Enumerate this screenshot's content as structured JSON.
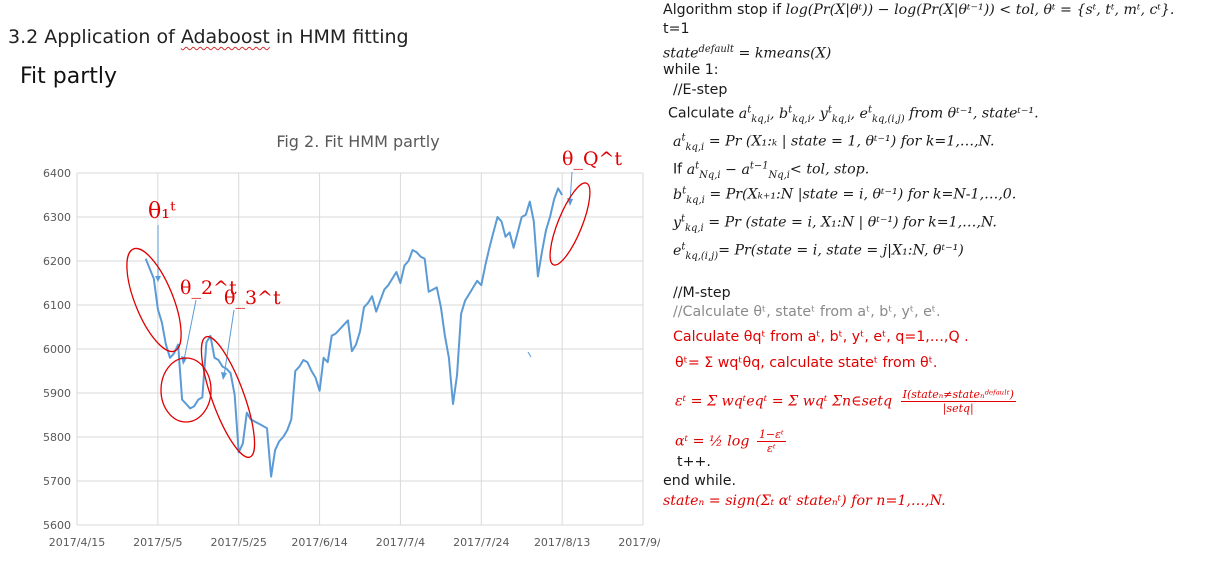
{
  "heading": {
    "prefix": "3.2 Application of ",
    "squiggle_word": "Adaboost",
    "suffix": " in HMM fitting"
  },
  "subheading": "Fit partly",
  "chart_data": {
    "type": "line",
    "title": "Fig 2. Fit HMM partly",
    "x_ticks": [
      "2017/4/15",
      "2017/5/5",
      "2017/5/25",
      "2017/6/14",
      "2017/7/4",
      "2017/7/24",
      "2017/8/13",
      "2017/9/2"
    ],
    "y_ticks": [
      "5600",
      "5700",
      "5800",
      "5900",
      "6000",
      "6100",
      "6200",
      "6300",
      "6400"
    ],
    "xlim": [
      0,
      140
    ],
    "ylim": [
      5600,
      6400
    ],
    "series_color": "#5b9bd5",
    "points": [
      [
        17,
        6205
      ],
      [
        19,
        6160
      ],
      [
        20,
        6090
      ],
      [
        21,
        6060
      ],
      [
        22,
        6010
      ],
      [
        23,
        5980
      ],
      [
        24,
        5990
      ],
      [
        25,
        6010
      ],
      [
        26,
        5885
      ],
      [
        27,
        5875
      ],
      [
        28,
        5865
      ],
      [
        29,
        5870
      ],
      [
        30,
        5885
      ],
      [
        31,
        5890
      ],
      [
        32,
        6015
      ],
      [
        33,
        6030
      ],
      [
        34,
        5980
      ],
      [
        35,
        5975
      ],
      [
        36,
        5960
      ],
      [
        37,
        5955
      ],
      [
        38,
        5945
      ],
      [
        39,
        5895
      ],
      [
        40,
        5765
      ],
      [
        41,
        5785
      ],
      [
        42,
        5855
      ],
      [
        43,
        5840
      ],
      [
        44,
        5835
      ],
      [
        45,
        5830
      ],
      [
        46,
        5825
      ],
      [
        47,
        5820
      ],
      [
        48,
        5710
      ],
      [
        49,
        5770
      ],
      [
        50,
        5790
      ],
      [
        51,
        5800
      ],
      [
        52,
        5815
      ],
      [
        53,
        5840
      ],
      [
        54,
        5950
      ],
      [
        55,
        5960
      ],
      [
        56,
        5975
      ],
      [
        57,
        5970
      ],
      [
        58,
        5950
      ],
      [
        59,
        5935
      ],
      [
        60,
        5905
      ],
      [
        61,
        5980
      ],
      [
        62,
        5970
      ],
      [
        63,
        6030
      ],
      [
        64,
        6035
      ],
      [
        65,
        6045
      ],
      [
        66,
        6055
      ],
      [
        67,
        6065
      ],
      [
        68,
        5995
      ],
      [
        69,
        6010
      ],
      [
        70,
        6040
      ],
      [
        71,
        6095
      ],
      [
        72,
        6105
      ],
      [
        73,
        6120
      ],
      [
        74,
        6085
      ],
      [
        75,
        6110
      ],
      [
        76,
        6135
      ],
      [
        77,
        6145
      ],
      [
        78,
        6160
      ],
      [
        79,
        6175
      ],
      [
        80,
        6150
      ],
      [
        81,
        6190
      ],
      [
        82,
        6200
      ],
      [
        83,
        6225
      ],
      [
        84,
        6220
      ],
      [
        85,
        6210
      ],
      [
        86,
        6205
      ],
      [
        87,
        6130
      ],
      [
        88,
        6135
      ],
      [
        89,
        6140
      ],
      [
        90,
        6095
      ],
      [
        91,
        6030
      ],
      [
        92,
        5980
      ],
      [
        93,
        5875
      ],
      [
        94,
        5940
      ],
      [
        95,
        6080
      ],
      [
        96,
        6110
      ],
      [
        97,
        6125
      ],
      [
        98,
        6140
      ],
      [
        99,
        6155
      ],
      [
        100,
        6145
      ],
      [
        101,
        6190
      ],
      [
        102,
        6230
      ],
      [
        103,
        6265
      ],
      [
        104,
        6300
      ],
      [
        105,
        6290
      ],
      [
        106,
        6255
      ],
      [
        107,
        6265
      ],
      [
        108,
        6230
      ],
      [
        109,
        6265
      ],
      [
        110,
        6300
      ],
      [
        111,
        6305
      ],
      [
        112,
        6335
      ],
      [
        113,
        6290
      ],
      [
        114,
        6165
      ],
      [
        115,
        6220
      ],
      [
        116,
        6270
      ],
      [
        117,
        6300
      ],
      [
        118,
        6340
      ],
      [
        119,
        6365
      ],
      [
        120,
        6350
      ]
    ],
    "annotations": [
      "θ₁ᵗ",
      "θ_2^t",
      "θ_3^t",
      "θ_Q^t"
    ],
    "annotation_color": "#e00000"
  },
  "algorithm": {
    "stop_text": "Algorithm stop if",
    "stop_formula": "log(Pr(X|θᵗ)) − log(Pr(X|θᵗ⁻¹)) < tol, θᵗ = {sᵗ, tᵗ, mᵗ, cᵗ}.",
    "t_init": "t=1",
    "state_default": "state",
    "kmeans": "= kmeans(X)",
    "while_loop": "while 1:",
    "e_step": "//E-step",
    "calculate": "Calculate",
    "e_from": "from θᵗ⁻¹, stateᵗ⁻¹.",
    "a_formula": "= Pr (X₁:ₖ | state = 1, θᵗ⁻¹) for k=1,…,N.",
    "if_text": "If",
    "if_cond": "< tol, stop.",
    "b_formula": "= Pr(Xₖ₊₁:N |state = i, θᵗ⁻¹) for k=N-1,…,0.",
    "y_formula": "= Pr (state = i, X₁:N | θᵗ⁻¹) for k=1,…,N.",
    "e_formula": "= Pr(state = i, state = j|X₁:N, θᵗ⁻¹)",
    "m_step": "//M-step",
    "m_gray": "//Calculate θᵗ, stateᵗ from aᵗ, bᵗ, yᵗ, eᵗ.",
    "m_red1": "Calculate θqᵗ from aᵗ, bᵗ, yᵗ, eᵗ, q=1,…,Q .",
    "m_red2": "θᵗ= Σ wqᵗθq, calculate stateᵗ from θᵗ.",
    "eps_formula": "εᵗ = Σ wqᵗeqᵗ = Σ wqᵗ Σn∈setq",
    "eps_num": "I(stateₙ≠stateₙᵈᵉᶠᵃᵘˡᵗ)",
    "eps_den": "|setq|",
    "alpha_formula": "αᵗ = ½ log",
    "alpha_num": "1−εᵗ",
    "alpha_den": "εᵗ",
    "t_inc": "t++.",
    "end_while": "end while.",
    "final": "stateₙ = sign(Σₜ αᵗ stateₙᵗ) for n=1,…,N."
  }
}
